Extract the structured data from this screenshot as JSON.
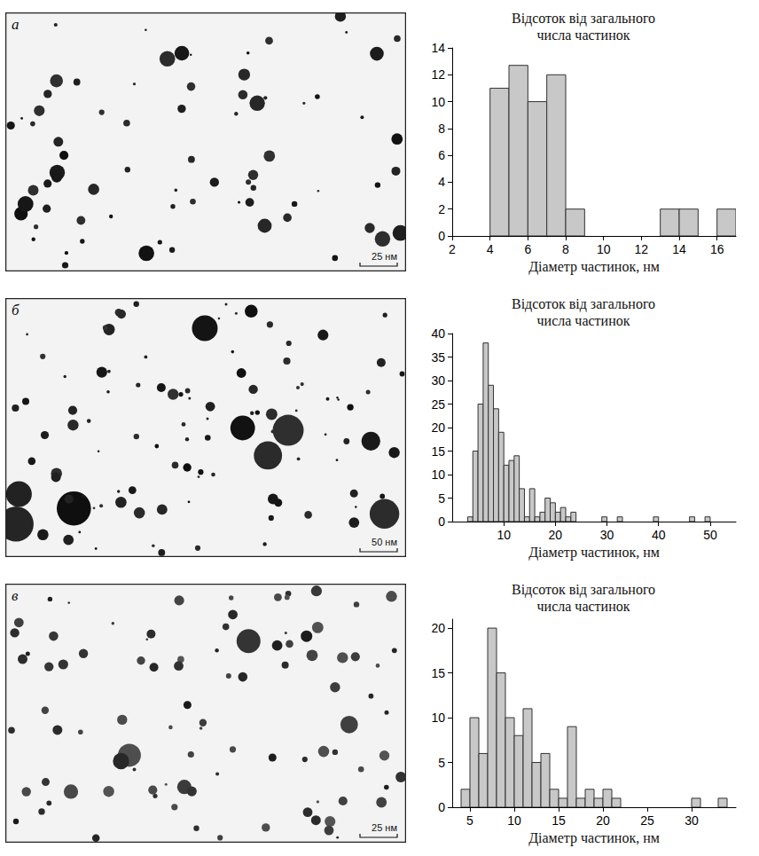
{
  "chart_data": [
    {
      "type": "histogram",
      "title": "Відсоток від загального числа частинок",
      "x_label": "Діаметр частинок, нм",
      "bins": [
        4,
        5,
        6,
        7,
        8,
        9,
        10,
        11,
        12,
        13,
        14,
        15,
        16,
        17
      ],
      "counts": [
        11,
        12.7,
        10,
        12,
        2,
        0,
        0,
        0,
        0,
        2,
        2,
        0,
        2
      ],
      "xlim": [
        2,
        17
      ],
      "xticks": [
        2,
        4,
        6,
        8,
        10,
        12,
        14,
        16
      ],
      "ylim": [
        0,
        14
      ],
      "yticks": [
        0,
        2,
        4,
        6,
        8,
        10,
        12,
        14
      ],
      "color": "#c8c8c8",
      "grid": false
    },
    {
      "type": "histogram",
      "title": "Відсоток від загального числа частинок",
      "x_label": "Діаметр частинок, нм",
      "bins": [
        3,
        4,
        5,
        6,
        7,
        8,
        9,
        10,
        11,
        12,
        13,
        14,
        15,
        16,
        17,
        18,
        19,
        20,
        21,
        22,
        23,
        24,
        25,
        26,
        27,
        28,
        29,
        30,
        31,
        32,
        33,
        34,
        35,
        36,
        37,
        38,
        39,
        40,
        41,
        42,
        43,
        44,
        45,
        46,
        47,
        48,
        49,
        50
      ],
      "counts": [
        1,
        15,
        25,
        38,
        29,
        24,
        19,
        12,
        13,
        14,
        7,
        1,
        7,
        1,
        2,
        5,
        4,
        2,
        3,
        1,
        2,
        0,
        0,
        0,
        0,
        0,
        1,
        0,
        0,
        1,
        0,
        0,
        0,
        0,
        0,
        0,
        1,
        0,
        0,
        0,
        0,
        0,
        0,
        1,
        0,
        0,
        1
      ],
      "xlim": [
        0,
        55
      ],
      "xticks": [
        10,
        20,
        30,
        40,
        50
      ],
      "ylim": [
        0,
        40
      ],
      "yticks": [
        0,
        5,
        10,
        15,
        20,
        25,
        30,
        35,
        40
      ],
      "color": "#c8c8c8",
      "grid": false
    },
    {
      "type": "histogram",
      "title": "Відсоток від загального числа частинок",
      "x_label": "Діаметр частинок, нм",
      "bins": [
        4,
        5,
        6,
        7,
        8,
        9,
        10,
        11,
        12,
        13,
        14,
        15,
        16,
        17,
        18,
        19,
        20,
        21,
        22,
        23,
        24,
        25,
        26,
        27,
        28,
        29,
        30,
        31,
        32,
        33,
        34
      ],
      "counts": [
        2,
        10,
        6,
        20,
        15,
        10,
        8,
        11,
        5,
        6,
        2,
        1,
        9,
        1,
        2,
        1,
        2,
        1,
        0,
        0,
        0,
        0,
        0,
        0,
        0,
        0,
        1,
        0,
        0,
        1
      ],
      "xlim": [
        3,
        35
      ],
      "xticks": [
        5,
        10,
        15,
        20,
        25,
        30
      ],
      "ylim": [
        0,
        21
      ],
      "yticks": [
        0,
        5,
        10,
        15,
        20
      ],
      "color": "#c8c8c8",
      "grid": false
    }
  ],
  "micrographs": [
    {
      "label": "а",
      "scale_bar": "25 нм"
    },
    {
      "label": "б",
      "scale_bar": "50 нм"
    },
    {
      "label": "в",
      "scale_bar": "25 нм"
    }
  ]
}
